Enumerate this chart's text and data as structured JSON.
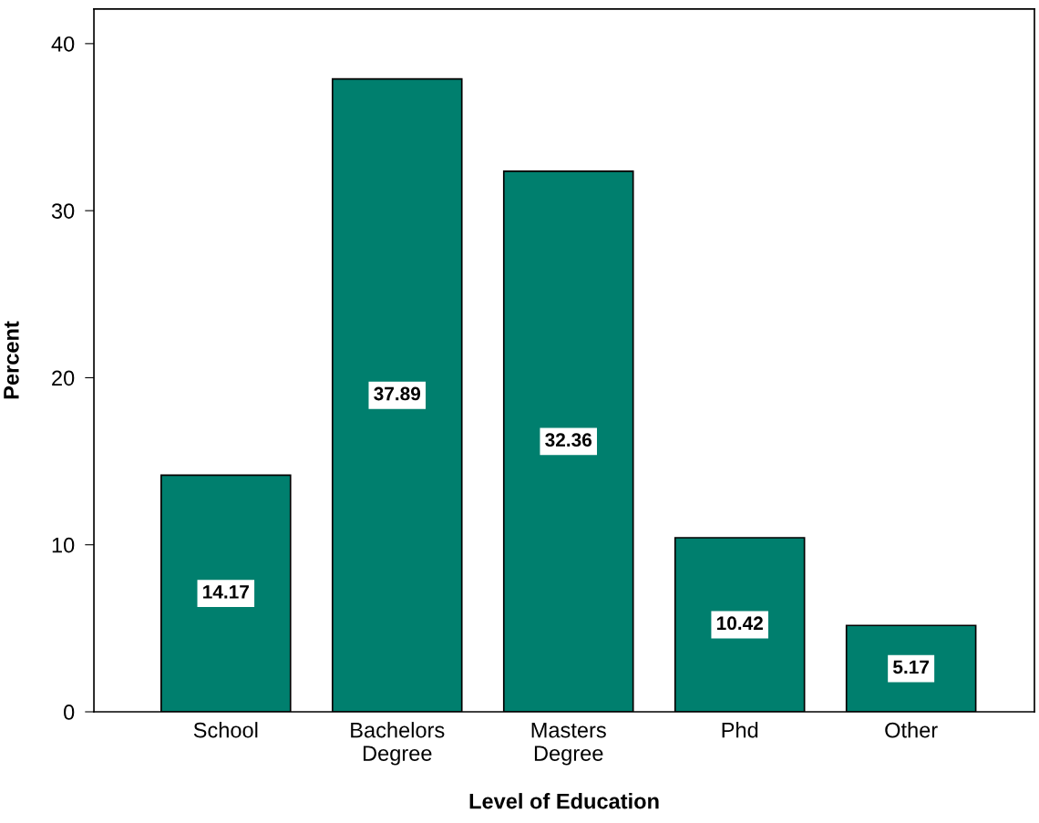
{
  "chart_data": {
    "type": "bar",
    "xlabel": "Level of Education",
    "ylabel": "Percent",
    "categories": [
      "School",
      "Bachelors\nDegree",
      "Masters\nDegree",
      "Phd",
      "Other"
    ],
    "values": [
      14.17,
      37.89,
      32.36,
      10.42,
      5.17
    ],
    "color": "#007f6e",
    "ylim": [
      0,
      42.07
    ],
    "yticks": [
      0,
      10,
      20,
      30,
      40
    ],
    "data_labels": true,
    "grid": false,
    "legend": false
  }
}
